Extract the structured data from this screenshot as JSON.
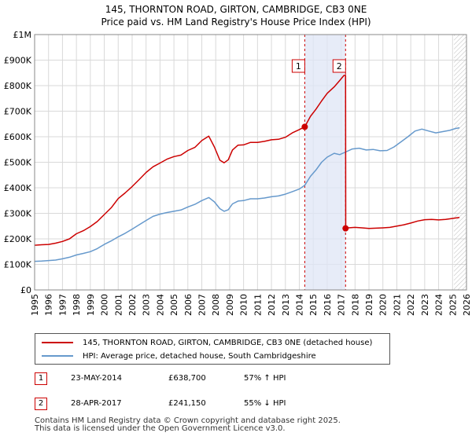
{
  "chart_data": {
    "type": "line",
    "title": "145, THORNTON ROAD, GIRTON, CAMBRIDGE, CB3 0NE",
    "subtitle": "Price paid vs. HM Land Registry's House Price Index (HPI)",
    "xlabel": "",
    "ylabel": "",
    "xlim": [
      1995,
      2026
    ],
    "ylim": [
      0,
      1000000
    ],
    "x_ticks": [
      "1995",
      "1996",
      "1997",
      "1998",
      "1999",
      "2000",
      "2001",
      "2002",
      "2003",
      "2004",
      "2005",
      "2006",
      "2007",
      "2008",
      "2009",
      "2010",
      "2011",
      "2012",
      "2013",
      "2014",
      "2015",
      "2016",
      "2017",
      "2018",
      "2019",
      "2020",
      "2021",
      "2022",
      "2023",
      "2024",
      "2025",
      "2026"
    ],
    "y_ticks": [
      {
        "value": 0,
        "label": "£0"
      },
      {
        "value": 100000,
        "label": "£100K"
      },
      {
        "value": 200000,
        "label": "£200K"
      },
      {
        "value": 300000,
        "label": "£300K"
      },
      {
        "value": 400000,
        "label": "£400K"
      },
      {
        "value": 500000,
        "label": "£500K"
      },
      {
        "value": 600000,
        "label": "£600K"
      },
      {
        "value": 700000,
        "label": "£700K"
      },
      {
        "value": 800000,
        "label": "£800K"
      },
      {
        "value": 900000,
        "label": "£900K"
      },
      {
        "value": 1000000,
        "label": "£1M"
      }
    ],
    "grid": true,
    "shaded_period": [
      2014.39,
      2017.32
    ],
    "forecast_start": 2025.1,
    "series": [
      {
        "name": "145, THORNTON ROAD, GIRTON, CAMBRIDGE, CB3 0NE (detached house)",
        "color": "#cc0000",
        "x": [
          1995.0,
          1995.5,
          1996.0,
          1996.5,
          1997.0,
          1997.5,
          1998.0,
          1998.5,
          1999.0,
          1999.5,
          2000.0,
          2000.5,
          2001.0,
          2001.5,
          2002.0,
          2002.5,
          2003.0,
          2003.5,
          2004.0,
          2004.5,
          2005.0,
          2005.5,
          2006.0,
          2006.5,
          2007.0,
          2007.5,
          2007.9,
          2008.3,
          2008.6,
          2008.9,
          2009.2,
          2009.6,
          2010.0,
          2010.5,
          2011.0,
          2011.5,
          2012.0,
          2012.5,
          2013.0,
          2013.5,
          2014.0,
          2014.39,
          2014.8,
          2015.2,
          2015.6,
          2016.0,
          2016.5,
          2016.9,
          2017.2,
          2017.32,
          2017.33,
          2017.5,
          2018.0,
          2018.5,
          2019.0,
          2019.5,
          2020.0,
          2020.5,
          2021.0,
          2021.5,
          2022.0,
          2022.5,
          2023.0,
          2023.5,
          2024.0,
          2024.5,
          2025.0,
          2025.5
        ],
        "values": [
          175000,
          177000,
          178000,
          183000,
          190000,
          200000,
          220000,
          232000,
          248000,
          268000,
          295000,
          322000,
          358000,
          380000,
          405000,
          432000,
          460000,
          482000,
          497000,
          512000,
          522000,
          528000,
          546000,
          558000,
          585000,
          602000,
          560000,
          508000,
          498000,
          510000,
          548000,
          567000,
          568000,
          578000,
          578000,
          582000,
          588000,
          590000,
          598000,
          615000,
          628000,
          638700,
          680000,
          708000,
          740000,
          770000,
          795000,
          820000,
          840000,
          840000,
          241150,
          243000,
          245000,
          243000,
          241000,
          242000,
          243000,
          245000,
          250000,
          255000,
          262000,
          270000,
          275000,
          276000,
          274000,
          276000,
          280000,
          284000
        ]
      },
      {
        "name": "HPI: Average price, detached house, South Cambridgeshire",
        "color": "#6699cc",
        "x": [
          1995.0,
          1995.5,
          1996.0,
          1996.5,
          1997.0,
          1997.5,
          1998.0,
          1998.5,
          1999.0,
          1999.5,
          2000.0,
          2000.5,
          2001.0,
          2001.5,
          2002.0,
          2002.5,
          2003.0,
          2003.5,
          2004.0,
          2004.5,
          2005.0,
          2005.5,
          2006.0,
          2006.5,
          2007.0,
          2007.5,
          2007.9,
          2008.3,
          2008.6,
          2008.9,
          2009.2,
          2009.6,
          2010.0,
          2010.5,
          2011.0,
          2011.5,
          2012.0,
          2012.5,
          2013.0,
          2013.5,
          2014.0,
          2014.39,
          2014.8,
          2015.2,
          2015.6,
          2016.0,
          2016.5,
          2016.9,
          2017.32,
          2017.8,
          2018.3,
          2018.8,
          2019.3,
          2019.8,
          2020.3,
          2020.8,
          2021.3,
          2021.8,
          2022.3,
          2022.8,
          2023.3,
          2023.8,
          2024.3,
          2024.8,
          2025.2,
          2025.5
        ],
        "values": [
          112000,
          113000,
          115000,
          117000,
          122000,
          128000,
          137000,
          143000,
          150000,
          162000,
          178000,
          192000,
          208000,
          222000,
          238000,
          255000,
          272000,
          288000,
          297000,
          303000,
          308000,
          313000,
          325000,
          335000,
          350000,
          362000,
          345000,
          318000,
          308000,
          314000,
          337000,
          348000,
          350000,
          357000,
          357000,
          360000,
          365000,
          368000,
          375000,
          385000,
          395000,
          410000,
          445000,
          470000,
          500000,
          520000,
          535000,
          530000,
          540000,
          552000,
          555000,
          548000,
          550000,
          545000,
          546000,
          560000,
          580000,
          600000,
          622000,
          630000,
          622000,
          615000,
          620000,
          625000,
          632000,
          635000
        ]
      }
    ],
    "markers": [
      {
        "label": "1",
        "x": 2014.39,
        "value": 638700
      },
      {
        "label": "2",
        "x": 2017.32,
        "value": 241150
      }
    ]
  },
  "transactions": [
    {
      "num": "1",
      "date": "23-MAY-2014",
      "price": "£638,700",
      "hpi": "57% ↑ HPI"
    },
    {
      "num": "2",
      "date": "28-APR-2017",
      "price": "£241,150",
      "hpi": "55% ↓ HPI"
    }
  ],
  "footer": {
    "line1": "Contains HM Land Registry data © Crown copyright and database right 2025.",
    "line2": "This data is licensed under the Open Government Licence v3.0."
  }
}
